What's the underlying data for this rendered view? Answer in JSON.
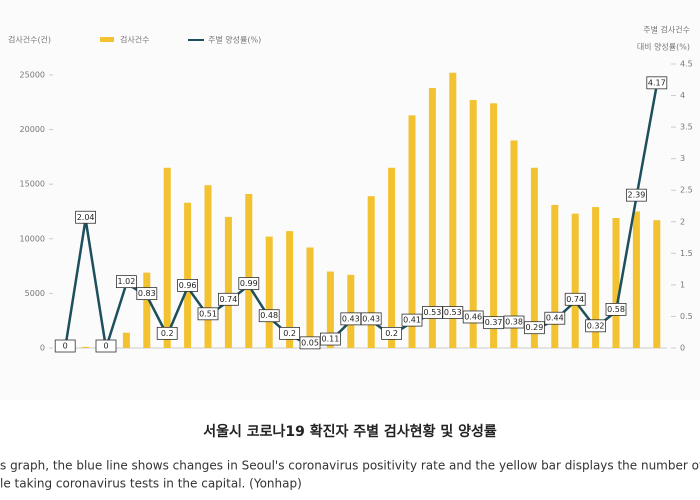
{
  "chart_data": {
    "type": "bar",
    "title": "서울시 코로나19 확진자 주별 검사현황 및 양성률",
    "caption": [
      "s graph, the blue line shows changes in Seoul's coronavirus positivity rate and the yellow bar displays the number of",
      "le taking coronavirus tests in the capital. (Yonhap)"
    ],
    "y_label": "검사건수(건)",
    "y2_label": [
      "주별 검사건수",
      "대비 양성률(%)"
    ],
    "categories": [
      null,
      null,
      null,
      null,
      null,
      null,
      null,
      null,
      null,
      null,
      null,
      null,
      null,
      null,
      null,
      null,
      null,
      null,
      null,
      null,
      null,
      null,
      null,
      null,
      null,
      null,
      null,
      null,
      null,
      null
    ],
    "series": [
      {
        "name": "검사건수",
        "type": "bar",
        "color": "#f2c230",
        "values": [
          0,
          100,
          0,
          1400,
          6900,
          16500,
          13300,
          14900,
          12000,
          14100,
          10200,
          10700,
          9200,
          7000,
          6700,
          13900,
          16500,
          21300,
          23800,
          25200,
          22700,
          22400,
          19000,
          16500,
          13100,
          12300,
          12900,
          11900,
          12500,
          11700
        ]
      },
      {
        "name": "주별 양성률(%)",
        "type": "line",
        "color": "#1d4f5c",
        "axis": "y2",
        "values": [
          0,
          2.04,
          0,
          1.02,
          0.83,
          0.2,
          0.96,
          0.51,
          0.74,
          0.99,
          0.48,
          0.2,
          0.05,
          0.11,
          0.43,
          0.43,
          0.2,
          0.41,
          0.53,
          0.53,
          0.46,
          0.37,
          0.38,
          0.29,
          0.44,
          0.74,
          0.32,
          0.58,
          2.39,
          4.17
        ]
      }
    ],
    "ylim": [
      0,
      26000
    ],
    "yticks": [
      0,
      5000,
      10000,
      15000,
      20000,
      25000
    ],
    "y2lim": [
      0,
      4.5
    ],
    "y2ticks": [
      0,
      0.5,
      1,
      1.5,
      2,
      2.5,
      3,
      3.5,
      4,
      4.5
    ],
    "legend": "top"
  }
}
